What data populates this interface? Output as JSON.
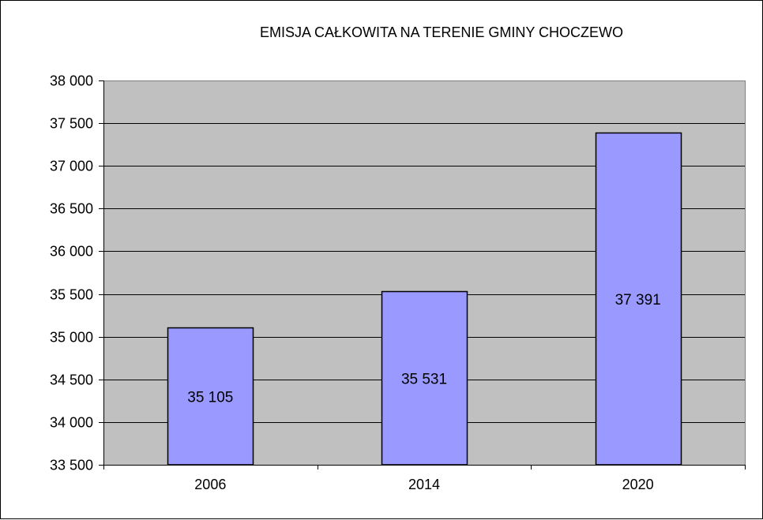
{
  "chart_data": {
    "type": "bar",
    "title": "EMISJA CAŁKOWITA NA TERENIE GMINY CHOCZEWO",
    "categories": [
      "2006",
      "2014",
      "2020"
    ],
    "values": [
      35105,
      35531,
      37391
    ],
    "data_labels": [
      "35 105",
      "35 531",
      "37 391"
    ],
    "ylim": [
      33500,
      38000
    ],
    "y_ticks": [
      33500,
      34000,
      34500,
      35000,
      35500,
      36000,
      36500,
      37000,
      37500,
      38000
    ],
    "y_tick_labels": [
      "33 500",
      "34 000",
      "34 500",
      "35 000",
      "35 500",
      "36 000",
      "36 500",
      "37 000",
      "37 500",
      "38 000"
    ],
    "xlabel": "",
    "ylabel": "",
    "grid": true,
    "legend": "none",
    "colors": {
      "bar_fill": "#9999ff",
      "plot_background": "#c0c0c0",
      "gridline": "#000000"
    }
  }
}
